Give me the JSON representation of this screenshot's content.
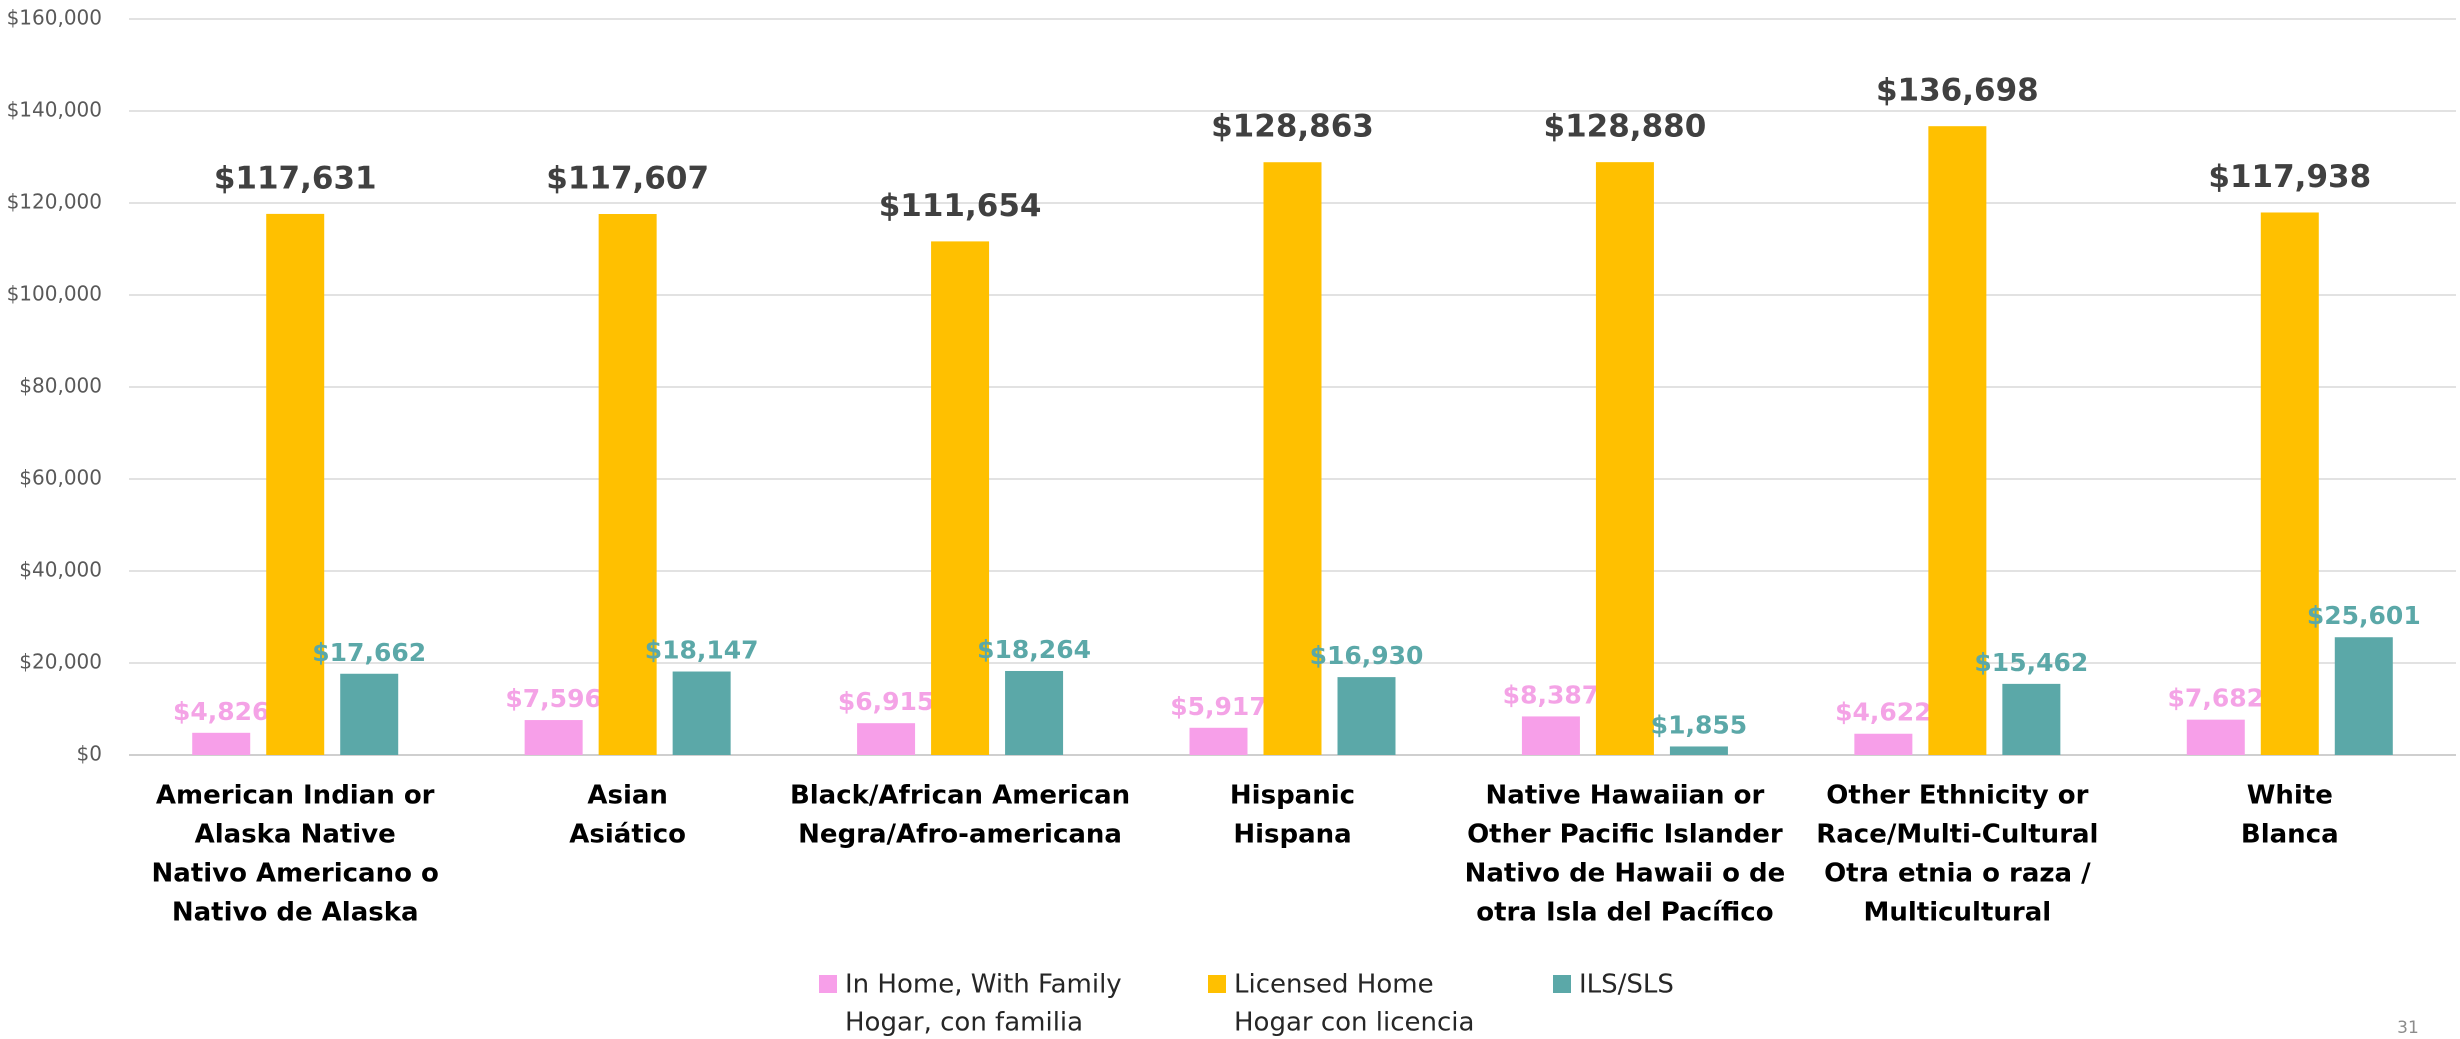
{
  "chart_data": {
    "type": "bar",
    "categories": [
      [
        "American Indian or",
        "Alaska Native",
        "Nativo Americano o",
        "Nativo de Alaska"
      ],
      [
        "Asian",
        "Asiático"
      ],
      [
        "Black/African American",
        "Negra/Afro-americana"
      ],
      [
        "Hispanic",
        "Hispana"
      ],
      [
        "Native Hawaiian or",
        "Other Pacific Islander",
        "Nativo de Hawaii o de",
        "otra Isla del Pacífico"
      ],
      [
        "Other Ethnicity or",
        "Race/Multi-Cultural",
        "Otra etnia o raza /",
        "Multicultural"
      ],
      [
        "White",
        "Blanca"
      ]
    ],
    "series": [
      {
        "name": [
          "In Home, With Family",
          "Hogar, con familia"
        ],
        "color": "#f79fe9",
        "label_color": "#f4a3e6",
        "values": [
          4826,
          7596,
          6915,
          5917,
          8387,
          4622,
          7682
        ],
        "value_labels": [
          "$4,826",
          "$7,596",
          "$6,915",
          "$5,917",
          "$8,387",
          "$4,622",
          "$7,682"
        ]
      },
      {
        "name": [
          "Licensed Home",
          "Hogar con licencia"
        ],
        "color": "#ffc000",
        "label_color": "#404040",
        "values": [
          117631,
          117607,
          111654,
          128863,
          128880,
          136698,
          117938
        ],
        "value_labels": [
          "$117,631",
          "$117,607",
          "$111,654",
          "$128,863",
          "$128,880",
          "$136,698",
          "$117,938"
        ]
      },
      {
        "name": [
          "ILS/SLS"
        ],
        "color": "#5ba8a8",
        "label_color": "#5ba8a8",
        "values": [
          17662,
          18147,
          18264,
          16930,
          1855,
          15462,
          25601
        ],
        "value_labels": [
          "$17,662",
          "$18,147",
          "$18,264",
          "$16,930",
          "$1,855",
          "$15,462",
          "$25,601"
        ]
      }
    ],
    "ylim": [
      0,
      160000
    ],
    "yticks": [
      {
        "value": 0,
        "label": "$0"
      },
      {
        "value": 20000,
        "label": "$20,000"
      },
      {
        "value": 40000,
        "label": "$40,000"
      },
      {
        "value": 60000,
        "label": "$60,000"
      },
      {
        "value": 80000,
        "label": "$80,000"
      },
      {
        "value": 100000,
        "label": "$100,000"
      },
      {
        "value": 120000,
        "label": "$120,000"
      },
      {
        "value": 140000,
        "label": "$140,000"
      },
      {
        "value": 160000,
        "label": "$160,000"
      }
    ],
    "grid": true,
    "legend": "bottom"
  },
  "page_number": "31"
}
